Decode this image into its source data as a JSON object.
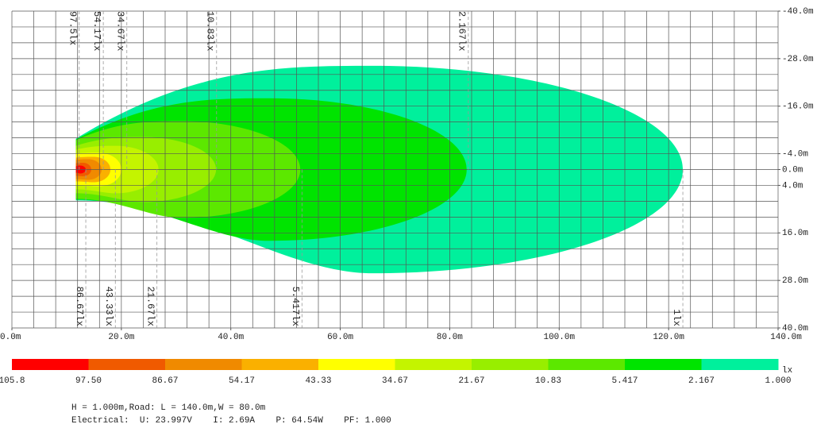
{
  "chart_data": {
    "type": "isolux",
    "xlim": [
      0,
      140
    ],
    "ylim": [
      -40,
      40
    ],
    "xticks": [
      {
        "value": 0,
        "label": "0.0m"
      },
      {
        "value": 20,
        "label": "20.0m"
      },
      {
        "value": 40,
        "label": "40.0m"
      },
      {
        "value": 60,
        "label": "60.0m"
      },
      {
        "value": 80,
        "label": "80.0m"
      },
      {
        "value": 100,
        "label": "100.0m"
      },
      {
        "value": 120,
        "label": "120.0m"
      },
      {
        "value": 140,
        "label": "140.0m"
      }
    ],
    "yticks": [
      {
        "value": -40,
        "label": "-40.0m"
      },
      {
        "value": -28,
        "label": "-28.0m"
      },
      {
        "value": -16,
        "label": "-16.0m"
      },
      {
        "value": -4,
        "label": "-4.0m"
      },
      {
        "value": 0,
        "label": "0.0m"
      },
      {
        "value": 4,
        "label": "4.0m"
      },
      {
        "value": 16,
        "label": "16.0m"
      },
      {
        "value": 28,
        "label": "28.0m"
      },
      {
        "value": 40,
        "label": "40.0m"
      }
    ],
    "grid_step": 4,
    "source_x": 11.7,
    "contours": [
      {
        "base": 7.8,
        "peak_x": 66,
        "spread": 26.2,
        "reach": 122.6
      },
      {
        "base": 7.6,
        "peak_x": 47,
        "spread": 18,
        "reach": 83.1
      },
      {
        "base": 7.4,
        "peak_x": 31,
        "spread": 12.2,
        "reach": 52.7
      },
      {
        "base": 6,
        "peak_x": 24,
        "spread": 8.2,
        "reach": 37.3
      },
      {
        "base": 5,
        "peak_x": 19,
        "spread": 6,
        "reach": 26.8
      },
      {
        "base": 4,
        "peak_x": 16,
        "spread": 4.2,
        "reach": 20
      },
      {
        "base": 3,
        "peak_x": 15,
        "spread": 3.2,
        "reach": 18
      },
      {
        "base": 2.4,
        "peak_x": 14,
        "spread": 2.6,
        "reach": 16.4
      },
      {
        "base": 1.6,
        "peak_x": 13,
        "spread": 1.7,
        "reach": 14.5
      },
      {
        "base": 0.8,
        "peak_x": 12.5,
        "spread": 1,
        "reach": 13.5
      }
    ],
    "markers_top": [
      {
        "x": 12.3,
        "label": "97.5lx"
      },
      {
        "x": 16.7,
        "label": "54.17lx"
      },
      {
        "x": 21,
        "label": "34.67lx"
      },
      {
        "x": 37.4,
        "label": "10.83lx"
      },
      {
        "x": 83.4,
        "label": "2.167lx"
      }
    ],
    "markers_bottom": [
      {
        "x": 13.5,
        "label": "86.67lx"
      },
      {
        "x": 18.9,
        "label": "43.33lx"
      },
      {
        "x": 26.5,
        "label": "21.67lx"
      },
      {
        "x": 53,
        "label": "5.417lx"
      },
      {
        "x": 122.6,
        "label": "1lx"
      }
    ],
    "colorbar": {
      "labels": [
        105.8,
        {
          "value": 97.5,
          "label": "97.50"
        },
        86.67,
        54.17,
        43.33,
        34.67,
        21.67,
        10.83,
        5.417,
        2.167,
        {
          "value": 1,
          "label": "1.000"
        }
      ],
      "colors": [
        "#ff0000",
        "#f05a00",
        "#f08a00",
        "#fab000",
        "#ffff00",
        "#c4f400",
        "#98ee00",
        "#5ce800",
        "#00e400",
        "#00f09c"
      ],
      "unit": "lx"
    },
    "info": [
      "H = 1.000m,Road: L = 140.0m,W = 80.0m",
      "Electrical:  U: 23.997V    I: 2.69A    P: 64.54W    PF: 1.000"
    ]
  }
}
